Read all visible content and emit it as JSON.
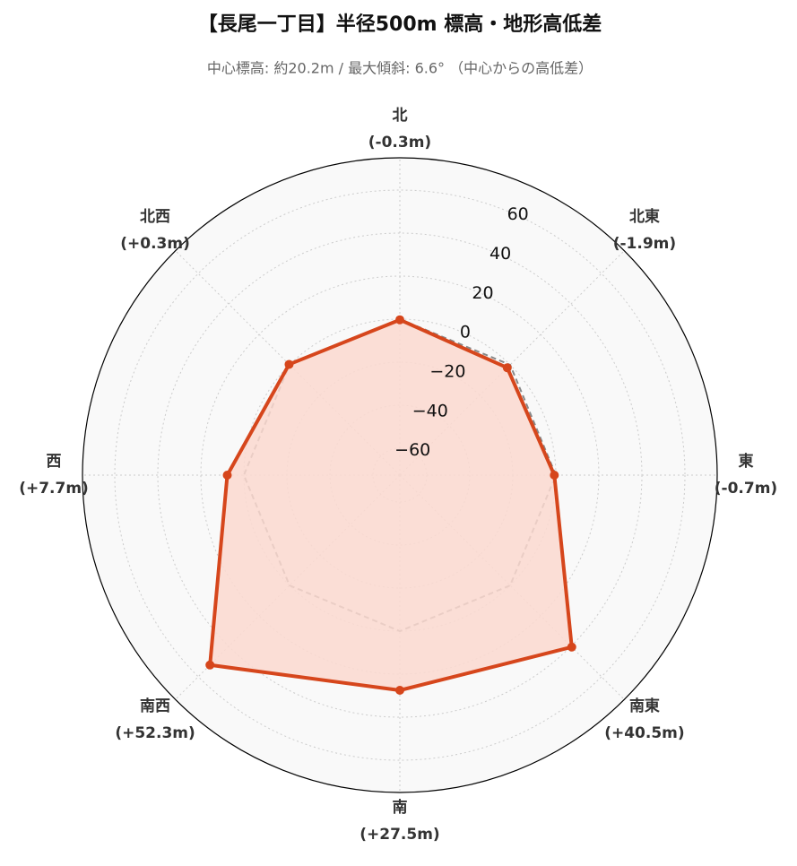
{
  "chart_data": {
    "type": "radar",
    "title": "【長尾一丁目】半径500m 標高・地形高低差",
    "subtitle": "中心標高: 約20.2m / 最大傾斜: 6.6° （中心からの高低差）",
    "categories": [
      "北",
      "北東",
      "東",
      "南東",
      "南",
      "南西",
      "西",
      "北西"
    ],
    "values": [
      -0.3,
      -1.9,
      -0.7,
      40.5,
      27.5,
      52.3,
      7.7,
      0.3
    ],
    "value_labels": [
      "(-0.3m)",
      "(-1.9m)",
      "(-0.7m)",
      "(+40.5m)",
      "(+27.5m)",
      "(+52.3m)",
      "(+7.7m)",
      "(+0.3m)"
    ],
    "color": "#d6461c",
    "fill": "#fbd9d0",
    "reference": 0,
    "ylim": [
      -72.5,
      75
    ],
    "yticks": [
      {
        "value": -60,
        "label": "−60"
      },
      {
        "value": -40,
        "label": "−40"
      },
      {
        "value": -20,
        "label": "−20"
      },
      0,
      20,
      40,
      60
    ],
    "grid": true
  }
}
